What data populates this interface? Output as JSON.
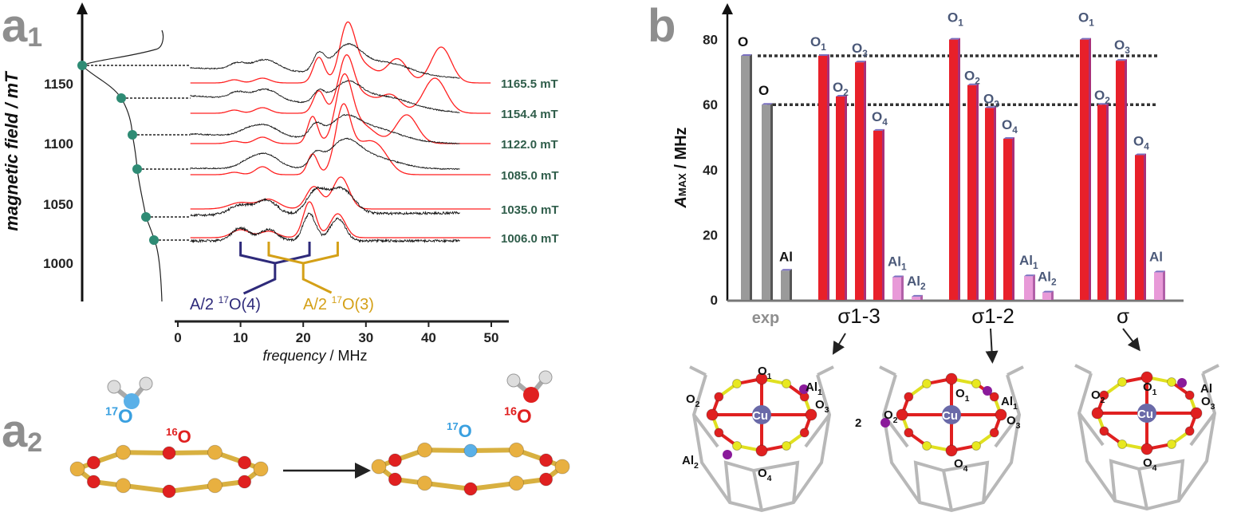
{
  "panel_labels": {
    "a1": "a",
    "a1_sub": "1",
    "a2": "a",
    "a2_sub": "2",
    "b": "b"
  },
  "colors": {
    "simulation": "#ff2020",
    "experiment": "#111111",
    "field_dots": "#2e8b74",
    "o4_annotation": "#2e2a7a",
    "o3_annotation": "#d4a017",
    "bar_exp": "#9a9a9a",
    "bar_O": "#e8202a",
    "bar_Al": "#e89ad8"
  },
  "chart_data": [
    {
      "type": "line",
      "panel": "a1",
      "ylabel": "magnetic field / mT",
      "xlabel_italic": "frequency",
      "xlabel_unit": " / MHz",
      "xlim": [
        0,
        50
      ],
      "x_ticks": [
        "0",
        "10",
        "20",
        "30",
        "40",
        "50"
      ],
      "ylim": [
        975,
        1190
      ],
      "y_ticks": [
        "1150",
        "1100",
        "1050",
        "1000"
      ],
      "series": [
        {
          "name": "1165.5 mT",
          "field": 1165.5
        },
        {
          "name": "1154.4 mT",
          "field": 1154.4
        },
        {
          "name": "1122.0 mT",
          "field": 1122.0
        },
        {
          "name": "1085.0 mT",
          "field": 1085.0
        },
        {
          "name": "1035.0 mT",
          "field": 1035.0
        },
        {
          "name": "1006.0 mT",
          "field": 1006.0
        }
      ],
      "annotations": [
        {
          "prefix": "A/2 ",
          "iso": "17",
          "atom": "O(4)",
          "color": "#2e2a7a"
        },
        {
          "prefix": "A/2 ",
          "iso": "17",
          "atom": "O(3)",
          "color": "#d4a017"
        }
      ]
    },
    {
      "type": "bar",
      "panel": "b",
      "ylabel_italic": "A",
      "ylabel_sub": "MAX",
      "ylabel_unit": " / MHz",
      "ylim": [
        0,
        85
      ],
      "y_ticks": [
        "0",
        "20",
        "40",
        "60",
        "80"
      ],
      "reference_lines": [
        75,
        60
      ],
      "groups": [
        {
          "name": "exp",
          "bars": [
            {
              "label": "O",
              "sub": "",
              "value": 75,
              "kind": "exp"
            },
            {
              "label": "O",
              "sub": "",
              "value": 60,
              "kind": "exp"
            },
            {
              "label": "Al",
              "sub": "",
              "value": 9,
              "kind": "exp"
            }
          ]
        },
        {
          "name": "σ1-3",
          "bars": [
            {
              "label": "O",
              "sub": "1",
              "value": 75,
              "kind": "O"
            },
            {
              "label": "O",
              "sub": "2",
              "value": 62.5,
              "kind": "O"
            },
            {
              "label": "O",
              "sub": "3",
              "value": 73,
              "kind": "O"
            },
            {
              "label": "O",
              "sub": "4",
              "value": 52,
              "kind": "O"
            },
            {
              "label": "Al",
              "sub": "1",
              "value": 7,
              "kind": "Al"
            },
            {
              "label": "Al",
              "sub": "2",
              "value": 1,
              "kind": "Al"
            }
          ]
        },
        {
          "name": "σ1-2",
          "bars": [
            {
              "label": "O",
              "sub": "1",
              "value": 80,
              "kind": "O"
            },
            {
              "label": "O",
              "sub": "2",
              "value": 66,
              "kind": "O"
            },
            {
              "label": "O",
              "sub": "3",
              "value": 59,
              "kind": "O"
            },
            {
              "label": "O",
              "sub": "4",
              "value": 49.5,
              "kind": "O"
            },
            {
              "label": "Al",
              "sub": "1",
              "value": 7.3,
              "kind": "Al"
            },
            {
              "label": "Al",
              "sub": "2",
              "value": 2.3,
              "kind": "Al"
            }
          ]
        },
        {
          "name": "σ",
          "bars": [
            {
              "label": "O",
              "sub": "1",
              "value": 80,
              "kind": "O"
            },
            {
              "label": "O",
              "sub": "2",
              "value": 60,
              "kind": "O"
            },
            {
              "label": "O",
              "sub": "3",
              "value": 73.5,
              "kind": "O"
            },
            {
              "label": "O",
              "sub": "4",
              "value": 44.5,
              "kind": "O"
            },
            {
              "label": "Al",
              "sub": "",
              "value": 8.5,
              "kind": "Al"
            }
          ]
        }
      ]
    }
  ],
  "a2": {
    "water_left_iso": "17",
    "water_left_atom": "O",
    "ring_left_iso": "16",
    "ring_left_atom": "O",
    "ring_right_iso": "17",
    "ring_right_atom": "O",
    "water_right_iso": "16",
    "water_right_atom": "O"
  },
  "structures": [
    {
      "labels": [
        {
          "t": "O",
          "s": "1"
        },
        {
          "t": "Al",
          "s": "1"
        },
        {
          "t": "O",
          "s": "2"
        },
        {
          "t": "Cu",
          "s": ""
        },
        {
          "t": "O",
          "s": "3"
        },
        {
          "t": "Al",
          "s": "2"
        },
        {
          "t": "O",
          "s": "4"
        }
      ]
    },
    {
      "labels": [
        {
          "t": "O",
          "s": "1"
        },
        {
          "t": "Al",
          "s": "1"
        },
        {
          "t": "O",
          "s": "2"
        },
        {
          "t": "Cu",
          "s": ""
        },
        {
          "t": "O",
          "s": "3"
        },
        {
          "t": "2",
          "s": ""
        },
        {
          "t": "O",
          "s": "4"
        }
      ]
    },
    {
      "labels": [
        {
          "t": "O",
          "s": "1"
        },
        {
          "t": "Al",
          "s": ""
        },
        {
          "t": "O",
          "s": "2"
        },
        {
          "t": "Cu",
          "s": ""
        },
        {
          "t": "O",
          "s": "3"
        },
        {
          "t": "O",
          "s": "4"
        }
      ]
    }
  ]
}
